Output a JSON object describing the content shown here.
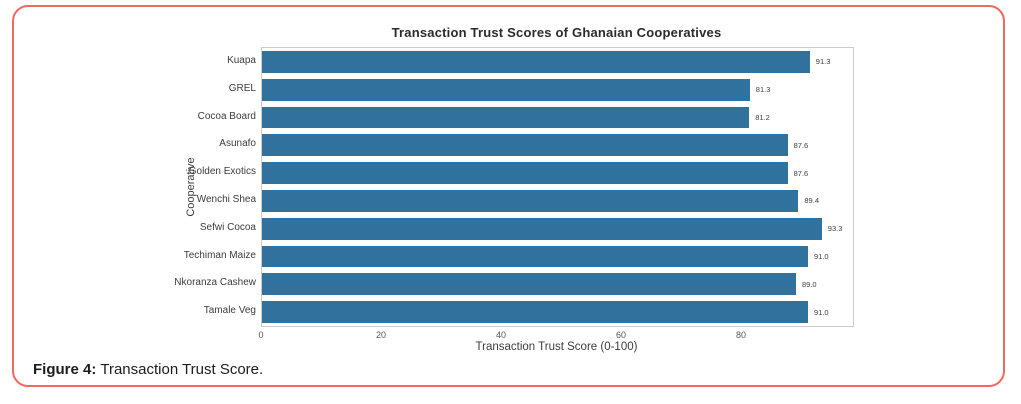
{
  "caption": {
    "label": "Figure 4:",
    "text": "Transaction Trust Score."
  },
  "colors": {
    "frame_border": "#f0695e",
    "bar": "#31719e",
    "plot_border": "#cccccc"
  },
  "chart_data": {
    "type": "bar",
    "orientation": "horizontal",
    "title": "Transaction Trust Scores of Ghanaian Cooperatives",
    "categories": [
      "Kuapa",
      "GREL",
      "Cocoa Board",
      "Asunafo",
      "Golden Exotics",
      "Wenchi Shea",
      "Sefwi Cocoa",
      "Techiman Maize",
      "Nkoranza Cashew",
      "Tamale Veg"
    ],
    "values": [
      91.3,
      81.3,
      81.2,
      87.6,
      87.6,
      89.4,
      93.3,
      91.0,
      89.0,
      91.0
    ],
    "value_labels": [
      "91.3",
      "81.3",
      "81.2",
      "87.6",
      "87.6",
      "89.4",
      "93.3",
      "91.0",
      "89.0",
      "91.0"
    ],
    "xlabel": "Transaction Trust Score (0-100)",
    "ylabel": "Cooperative",
    "xticks": [
      0,
      20,
      40,
      60,
      80
    ],
    "xlim": [
      0,
      98.5
    ],
    "bar_color": "#31719e",
    "bar_fraction_of_band": 0.79,
    "grid": false,
    "legend": null
  }
}
